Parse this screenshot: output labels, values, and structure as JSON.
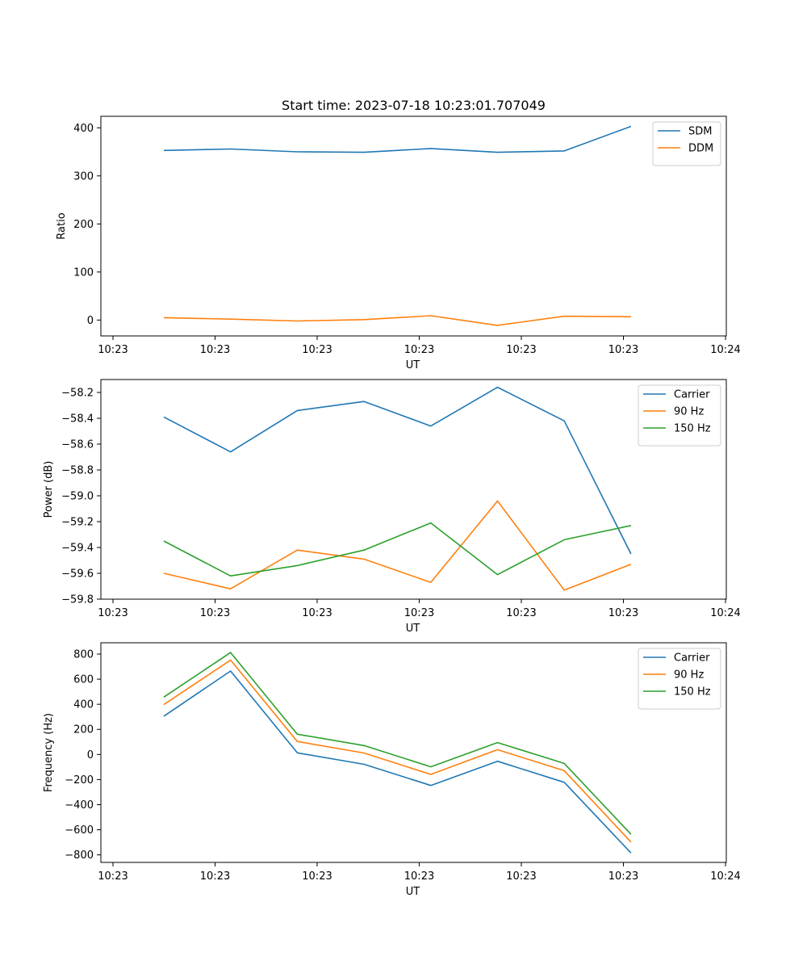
{
  "title": "Start time: 2023-07-18 10:23:01.707049",
  "chart_data": [
    {
      "type": "line",
      "title": "Start time: 2023-07-18 10:23:01.707049",
      "xlabel": "UT",
      "ylabel": "Ratio",
      "x_tick_labels": [
        "10:23",
        "10:23",
        "10:23",
        "10:23",
        "10:23",
        "10:23",
        "10:24"
      ],
      "y_ticks": [
        0,
        100,
        200,
        300,
        400
      ],
      "y_tick_labels": [
        "0",
        "100",
        "200",
        "300",
        "400"
      ],
      "ylim": [
        -33,
        424
      ],
      "x_index": [
        0,
        1,
        2,
        3,
        4,
        5,
        6,
        7
      ],
      "series": [
        {
          "name": "SDM",
          "color": "#1f77b4",
          "values": [
            353,
            356,
            350,
            349,
            357,
            349,
            352,
            403
          ]
        },
        {
          "name": "DDM",
          "color": "#ff7f0e",
          "values": [
            5,
            2,
            -2,
            1,
            9,
            -11,
            8,
            7
          ]
        }
      ],
      "legend": "top-right"
    },
    {
      "type": "line",
      "title": "",
      "xlabel": "UT",
      "ylabel": "Power (dB)",
      "x_tick_labels": [
        "10:23",
        "10:23",
        "10:23",
        "10:23",
        "10:23",
        "10:23",
        "10:24"
      ],
      "y_ticks": [
        -59.8,
        -59.6,
        -59.4,
        -59.2,
        -59.0,
        -58.8,
        -58.6,
        -58.4,
        -58.2
      ],
      "y_tick_labels": [
        "−59.8",
        "−59.6",
        "−59.4",
        "−59.2",
        "−59.0",
        "−58.8",
        "−58.6",
        "−58.4",
        "−58.2"
      ],
      "ylim": [
        -59.8,
        -58.1
      ],
      "x_index": [
        0,
        1,
        2,
        3,
        4,
        5,
        6,
        7
      ],
      "series": [
        {
          "name": "Carrier",
          "color": "#1f77b4",
          "values": [
            -58.39,
            -58.66,
            -58.34,
            -58.27,
            -58.46,
            -58.16,
            -58.42,
            -59.45
          ]
        },
        {
          "name": "90 Hz",
          "color": "#ff7f0e",
          "values": [
            -59.6,
            -59.72,
            -59.42,
            -59.49,
            -59.67,
            -59.04,
            -59.73,
            -59.53
          ]
        },
        {
          "name": "150 Hz",
          "color": "#2ca02c",
          "values": [
            -59.35,
            -59.62,
            -59.54,
            -59.42,
            -59.21,
            -59.61,
            -59.34,
            -59.23
          ]
        }
      ],
      "legend": "top-right"
    },
    {
      "type": "line",
      "title": "",
      "xlabel": "UT",
      "ylabel": "Frequency (Hz)",
      "x_tick_labels": [
        "10:23",
        "10:23",
        "10:23",
        "10:23",
        "10:23",
        "10:23",
        "10:24"
      ],
      "y_ticks": [
        -800,
        -600,
        -400,
        -200,
        0,
        200,
        400,
        600,
        800
      ],
      "y_tick_labels": [
        "−800",
        "−600",
        "−400",
        "−200",
        "0",
        "200",
        "400",
        "600",
        "800"
      ],
      "ylim": [
        -860,
        890
      ],
      "x_index": [
        0,
        1,
        2,
        3,
        4,
        5,
        6,
        7
      ],
      "series": [
        {
          "name": "Carrier",
          "color": "#1f77b4",
          "values": [
            305,
            665,
            13,
            -78,
            -247,
            -54,
            -222,
            -785
          ]
        },
        {
          "name": "90 Hz",
          "color": "#ff7f0e",
          "values": [
            397,
            752,
            104,
            12,
            -159,
            38,
            -129,
            -698
          ]
        },
        {
          "name": "150 Hz",
          "color": "#2ca02c",
          "values": [
            457,
            812,
            162,
            71,
            -98,
            95,
            -71,
            -636
          ]
        }
      ],
      "legend": "top-right"
    }
  ]
}
